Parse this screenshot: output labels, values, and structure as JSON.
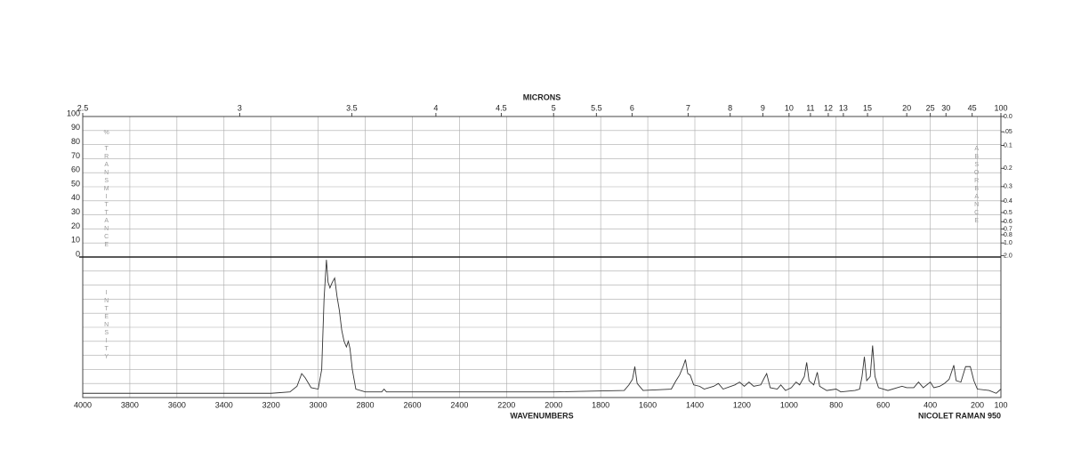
{
  "chart_data": {
    "type": "line",
    "top_axis_label": "MICRONS",
    "xlabel": "WAVENUMBERS",
    "instrument": "NICOLET RAMAN 950",
    "ylabel": "% TRANSMITTANCE",
    "y2label": "ABSORBANCE",
    "intensity_label": "INTENSITY",
    "xlim": [
      4000,
      100
    ],
    "xticks": [
      4000,
      3800,
      3600,
      3400,
      3200,
      3000,
      2800,
      2600,
      2400,
      2200,
      2000,
      1800,
      1600,
      1400,
      1200,
      1000,
      800,
      600,
      400,
      200,
      100
    ],
    "x2ticks": [
      2.5,
      3,
      3.5,
      4,
      4.5,
      5,
      5.5,
      6,
      7,
      8,
      9,
      10,
      11,
      12,
      13,
      15,
      20,
      25,
      30,
      45,
      100
    ],
    "ylim": [
      0,
      100
    ],
    "yticks": [
      0,
      10,
      20,
      30,
      40,
      50,
      60,
      70,
      80,
      90,
      100
    ],
    "y2ticks": [
      {
        "value": 0,
        "label": "0.0"
      },
      {
        "value": 0.05,
        "label": ".05"
      },
      0.1,
      0.2,
      0.3,
      0.4,
      0.5,
      0.6,
      0.7,
      0.8,
      {
        "value": 1,
        "label": "1.0"
      },
      {
        "value": 2,
        "label": "2.0"
      }
    ],
    "intensity_lim": [
      0,
      100
    ],
    "grid": true,
    "series": [
      {
        "color": "#333333",
        "x": [
          4000,
          3500,
          3200,
          3120,
          3090,
          3070,
          3055,
          3030,
          3000,
          2985,
          2975,
          2965,
          2958,
          2950,
          2940,
          2930,
          2920,
          2910,
          2900,
          2890,
          2880,
          2872,
          2865,
          2855,
          2840,
          2800,
          2730,
          2720,
          2710,
          2500,
          2000,
          1700,
          1680,
          1665,
          1655,
          1645,
          1620,
          1500,
          1480,
          1465,
          1450,
          1440,
          1430,
          1420,
          1405,
          1380,
          1360,
          1320,
          1300,
          1280,
          1230,
          1210,
          1190,
          1170,
          1150,
          1120,
          1105,
          1095,
          1080,
          1050,
          1035,
          1015,
          990,
          970,
          955,
          935,
          925,
          915,
          895,
          880,
          870,
          840,
          800,
          780,
          720,
          700,
          690,
          680,
          670,
          655,
          645,
          635,
          620,
          580,
          520,
          500,
          470,
          450,
          430,
          400,
          385,
          360,
          340,
          320,
          300,
          290,
          270,
          250,
          230,
          215,
          200,
          150,
          120,
          100
        ],
        "values": [
          3,
          3,
          3,
          4,
          8,
          17,
          14,
          7,
          6,
          20,
          70,
          98,
          82,
          78,
          82,
          85,
          72,
          62,
          48,
          40,
          36,
          40,
          35,
          20,
          6,
          4,
          4,
          6,
          4,
          4,
          4,
          5,
          9,
          13,
          22,
          10,
          5,
          6,
          12,
          16,
          22,
          27,
          17,
          16,
          9,
          8,
          6,
          8,
          10,
          6,
          9,
          11,
          8,
          11,
          8,
          9,
          14,
          17,
          7,
          6,
          9,
          5,
          7,
          11,
          9,
          15,
          25,
          12,
          9,
          18,
          8,
          5,
          6,
          4,
          5,
          6,
          15,
          29,
          12,
          15,
          37,
          15,
          7,
          5,
          8,
          7,
          7,
          11,
          7,
          11,
          7,
          8,
          10,
          13,
          23,
          12,
          11,
          22,
          22,
          12,
          6,
          5,
          3,
          6
        ]
      }
    ]
  }
}
